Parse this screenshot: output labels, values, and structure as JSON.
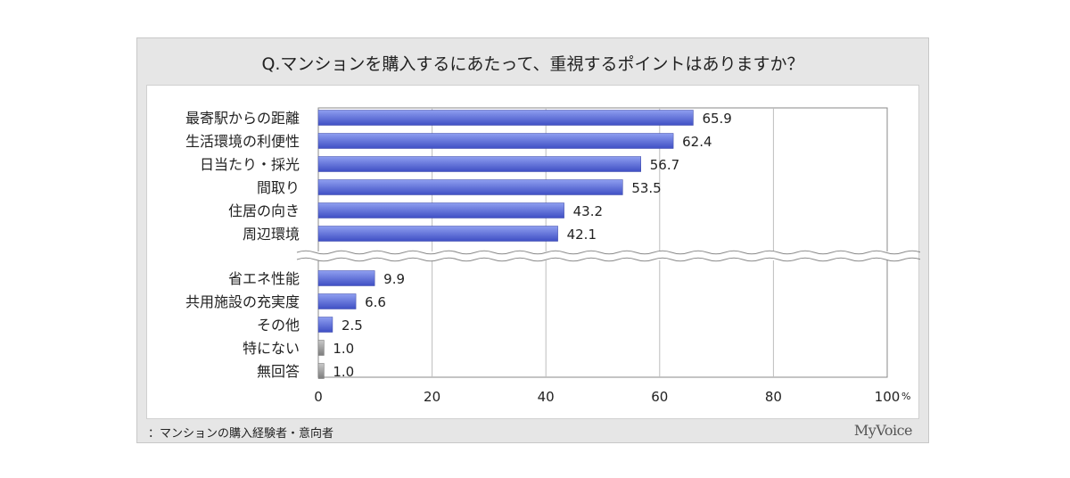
{
  "title": "Q.マンションを購入するにあたって、重視するポイントはありますか？",
  "footnote": "：マンションの購入経験者・意向者",
  "brand": "MyVoice",
  "colors": {
    "bar_top": "#8f9ff0",
    "bar_bottom": "#3f4fc4",
    "bar_gray": "#8c8c8c",
    "grid": "#bdbdbd",
    "panel": "#e6e6e6"
  },
  "chart_data": {
    "type": "bar",
    "orientation": "horizontal",
    "title": "Q.マンションを購入するにあたって、重視するポイントはありますか？",
    "xlabel": "",
    "ylabel": "",
    "unit": "%",
    "xlim": [
      0,
      100
    ],
    "xticks": [
      "0",
      "20",
      "40",
      "60",
      "80",
      "100"
    ],
    "axis_break_after_index": 5,
    "categories": [
      "最寄駅からの距離",
      "生活環境の利便性",
      "日当たり・採光",
      "間取り",
      "住居の向き",
      "周辺環境",
      "省エネ性能",
      "共用施設の充実度",
      "その他",
      "特にない",
      "無回答"
    ],
    "values": [
      65.9,
      62.4,
      56.7,
      53.5,
      43.2,
      42.1,
      9.9,
      6.6,
      2.5,
      1.0,
      1.0
    ],
    "value_labels": [
      "65.9",
      "62.4",
      "56.7",
      "53.5",
      "43.2",
      "42.1",
      "9.9",
      "6.6",
      "2.5",
      "1.0",
      "1.0"
    ],
    "gray_categories": [
      "特にない",
      "無回答"
    ],
    "legend": "none"
  }
}
